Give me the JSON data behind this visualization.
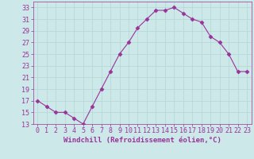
{
  "hours": [
    0,
    1,
    2,
    3,
    4,
    5,
    6,
    7,
    8,
    9,
    10,
    11,
    12,
    13,
    14,
    15,
    16,
    17,
    18,
    19,
    20,
    21,
    22,
    23
  ],
  "temps": [
    17,
    16,
    15,
    15,
    14,
    13,
    16,
    19,
    22,
    25,
    27,
    29.5,
    31,
    32.5,
    32.5,
    33,
    32,
    31,
    30.5,
    28,
    27,
    25,
    22,
    22
  ],
  "line_color": "#993399",
  "marker": "D",
  "marker_size": 2.5,
  "bg_color": "#cce8e8",
  "grid_color": "#aacccc",
  "xlabel": "Windchill (Refroidissement éolien,°C)",
  "ylim": [
    13,
    34
  ],
  "yticks": [
    13,
    15,
    17,
    19,
    21,
    23,
    25,
    27,
    29,
    31,
    33
  ],
  "xlim": [
    -0.5,
    23.5
  ],
  "tick_color": "#993399",
  "label_color": "#993399",
  "axis_label_fontsize": 6.5,
  "tick_fontsize": 6
}
